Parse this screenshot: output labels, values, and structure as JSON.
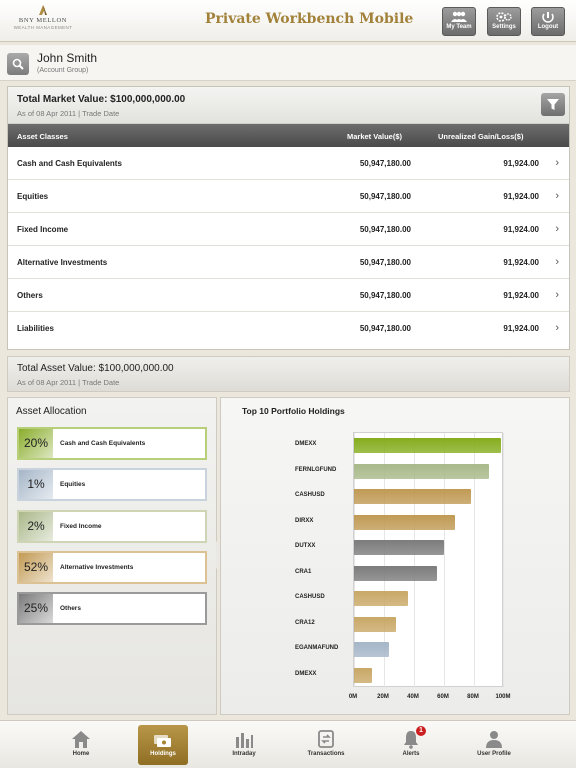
{
  "header": {
    "logo_line1": "BNY MELLON",
    "logo_line2": "WEALTH MANAGEMENT",
    "title": "Private Workbench Mobile",
    "buttons": [
      {
        "label": "My Team",
        "icon": "team-icon"
      },
      {
        "label": "Settings",
        "icon": "gear-icon"
      },
      {
        "label": "Logout",
        "icon": "logout-icon"
      }
    ]
  },
  "user": {
    "name": "John Smith",
    "group": "(Account Group)"
  },
  "market": {
    "title": "Total Market Value: $100,000,000.00",
    "as_of": "As of 08 Apr 2011",
    "trade_date": "Trade Date",
    "columns": [
      "Asset Classes",
      "Market Value($)",
      "Unrealized Gain/Loss($)"
    ],
    "rows": [
      {
        "name": "Cash and Cash Equivalents",
        "market_value": "50,947,180.00",
        "gain_loss": "91,924.00"
      },
      {
        "name": "Equities",
        "market_value": "50,947,180.00",
        "gain_loss": "91,924.00"
      },
      {
        "name": "Fixed Income",
        "market_value": "50,947,180.00",
        "gain_loss": "91,924.00"
      },
      {
        "name": "Alternative Investments",
        "market_value": "50,947,180.00",
        "gain_loss": "91,924.00"
      },
      {
        "name": "Others",
        "market_value": "50,947,180.00",
        "gain_loss": "91,924.00"
      },
      {
        "name": "Liabilities",
        "market_value": "50,947,180.00",
        "gain_loss": "91,924.00"
      }
    ]
  },
  "asset": {
    "title": "Total Asset Value: $100,000,000.00",
    "as_of": "As of 08 Apr 2011",
    "trade_date": "Trade Date"
  },
  "allocation": {
    "title": "Asset Allocation",
    "items": [
      {
        "pct": "20%",
        "name": "Cash and Cash Equivalents",
        "color": "#8aad2c",
        "border": "#b7cf78"
      },
      {
        "pct": "1%",
        "name": "Equities",
        "color": "#a6b6c8",
        "border": "#c9d3de"
      },
      {
        "pct": "2%",
        "name": "Fixed Income",
        "color": "#aab88a",
        "border": "#cdd5b5"
      },
      {
        "pct": "52%",
        "name": "Alternative Investments",
        "color": "#c29a54",
        "border": "#dcc195"
      },
      {
        "pct": "25%",
        "name": "Others",
        "color": "#7b7b7b",
        "border": "#9a9a9a"
      }
    ]
  },
  "chart_data": {
    "type": "bar",
    "orientation": "horizontal",
    "title": "Top 10 Portfolio Holdings",
    "categories": [
      "DMEXX",
      "FERNLGFUND",
      "CASHUSD",
      "DIRXX",
      "DUTXX",
      "CRA1",
      "CASHUSD",
      "CRA12",
      "EGANMAFUND",
      "DMEXX"
    ],
    "values": [
      98,
      90,
      78,
      67,
      60,
      55,
      36,
      28,
      23,
      12
    ],
    "colors": [
      "#86ad1f",
      "#a9b98a",
      "#c09a55",
      "#c09a55",
      "#7c7c7c",
      "#7c7c7c",
      "#c9a867",
      "#c9a867",
      "#a5b6c8",
      "#c9a867"
    ],
    "xlabels": [
      "0M",
      "20M",
      "40M",
      "60M",
      "80M",
      "100M"
    ],
    "xlim": [
      0,
      100
    ],
    "grid": true
  },
  "tabs": [
    {
      "label": "Home",
      "icon": "home-icon",
      "active": false
    },
    {
      "label": "Holdings",
      "icon": "holdings-icon",
      "active": true
    },
    {
      "label": "Intraday",
      "icon": "intraday-icon",
      "active": false
    },
    {
      "label": "Transactions",
      "icon": "transactions-icon",
      "active": false
    },
    {
      "label": "Alerts",
      "icon": "bell-icon",
      "active": false,
      "badge": "1"
    },
    {
      "label": "User Profile",
      "icon": "user-icon",
      "active": false
    }
  ]
}
